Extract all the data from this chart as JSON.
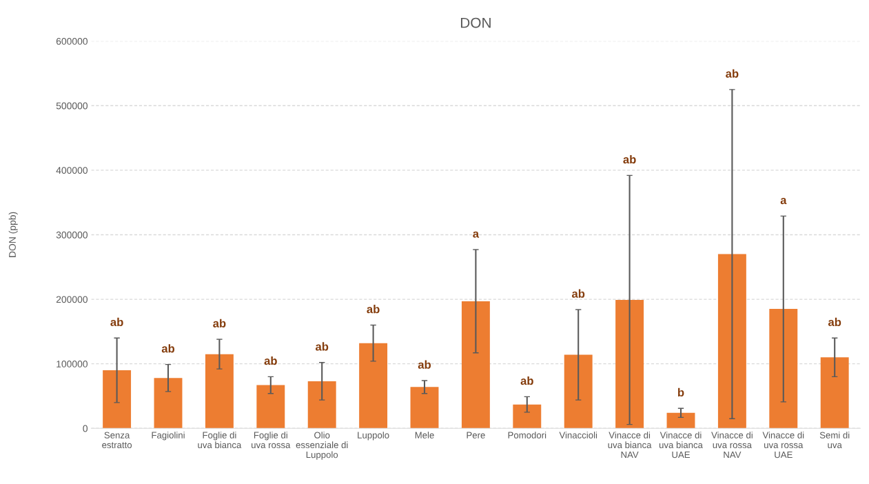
{
  "chart_data": {
    "type": "bar",
    "title": "DON",
    "ylabel": "DON (ppb)",
    "categories": [
      "Senza\nestratto",
      "Fagiolini",
      "Foglie di\nuva bianca",
      "Foglie di\nuva rossa",
      "Olio\nessenziale di\nLuppolo",
      "Luppolo",
      "Mele",
      "Pere",
      "Pomodori",
      "Vinaccioli",
      "Vinacce di\nuva bianca\nNAV",
      "Vinacce di\nuva bianca\nUAE",
      "Vinacce di\nuva rossa\nNAV",
      "Vinacce di\nuva rossa\nUAE",
      "Semi di\nuva"
    ],
    "values": [
      90000,
      78000,
      115000,
      67000,
      73000,
      132000,
      64000,
      197000,
      37000,
      114000,
      199000,
      24000,
      270000,
      185000,
      110000
    ],
    "errors": [
      50000,
      21000,
      23000,
      13000,
      29000,
      28000,
      10000,
      80000,
      12000,
      70000,
      193000,
      7000,
      255000,
      144000,
      30000
    ],
    "color": "#ed7d31",
    "ylim": [
      0,
      600000
    ],
    "yticks": [
      0,
      100000,
      200000,
      300000,
      400000,
      500000,
      600000
    ],
    "grid": "y",
    "annotations": [
      "ab",
      "ab",
      "ab",
      "ab",
      "ab",
      "ab",
      "ab",
      "a",
      "ab",
      "ab",
      "ab",
      "b",
      "ab",
      "a",
      "ab"
    ]
  }
}
